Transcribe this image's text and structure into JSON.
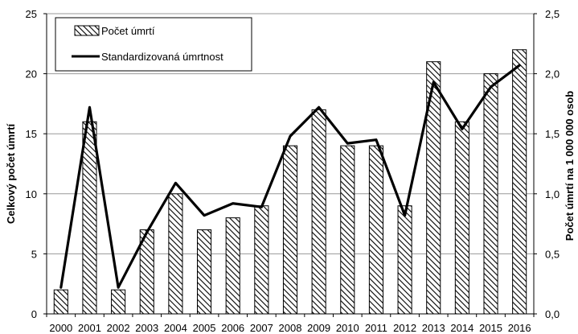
{
  "chart_data": {
    "type": "bar",
    "categories": [
      "2000",
      "2001",
      "2002",
      "2003",
      "2004",
      "2005",
      "2006",
      "2007",
      "2008",
      "2009",
      "2010",
      "2011",
      "2012",
      "2013",
      "2014",
      "2015",
      "2016"
    ],
    "series": [
      {
        "name": "Počet úmrtí",
        "type": "bar",
        "axis": "left",
        "values": [
          2,
          16,
          2,
          7,
          10,
          7,
          8,
          9,
          14,
          17,
          14,
          14,
          9,
          21,
          16,
          20,
          22
        ]
      },
      {
        "name": "Standardizovaná úmrtnost",
        "type": "line",
        "axis": "right",
        "values": [
          0.22,
          1.72,
          0.22,
          0.68,
          1.09,
          0.82,
          0.92,
          0.89,
          1.48,
          1.72,
          1.42,
          1.45,
          0.82,
          1.93,
          1.54,
          1.89,
          2.07
        ]
      }
    ],
    "xlabel": "",
    "ylabel": "Celkový počet úmrtí",
    "y2label": "Počet úmrtí na 1 000 000 osob",
    "ylim": [
      0,
      25
    ],
    "y2lim": [
      0,
      2.5
    ],
    "yticks": [
      "0",
      "5",
      "10",
      "15",
      "20",
      "25"
    ],
    "y2ticks": [
      "0,0",
      "0,5",
      "1,0",
      "1,5",
      "2,0",
      "2,5"
    ],
    "grid": true,
    "legend_position": "top-left",
    "colors": {
      "bar_fill": "#ffffff",
      "bar_hatch": "#000000",
      "line": "#000000",
      "grid": "#999999"
    }
  }
}
